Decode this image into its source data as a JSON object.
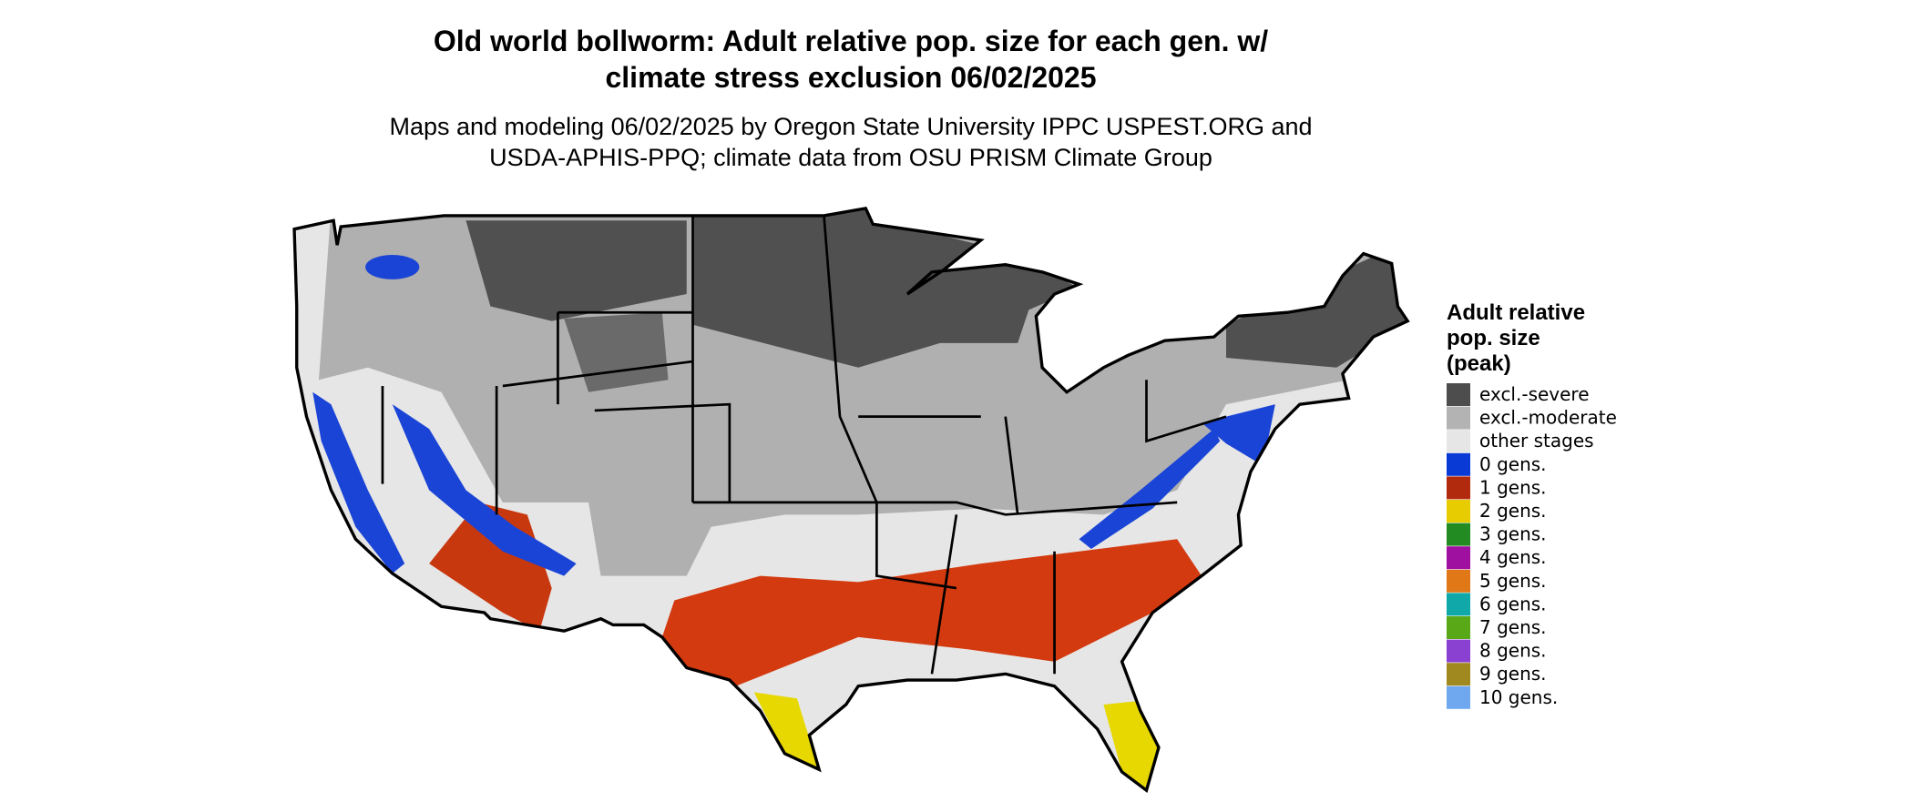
{
  "header": {
    "title_lines": [
      "Old world bollworm: Adult relative pop. size for each gen. w/",
      "climate stress exclusion 06/02/2025"
    ],
    "subtitle_lines": [
      "Maps and modeling 06/02/2025 by Oregon State University IPPC USPEST.ORG and",
      "USDA-APHIS-PPQ; climate data from OSU PRISM Climate Group"
    ]
  },
  "legend": {
    "title_lines": [
      "Adult relative",
      "pop. size",
      "(peak)"
    ],
    "items": [
      {
        "label": "excl.-severe",
        "color": "#4d4d4d"
      },
      {
        "label": "excl.-moderate",
        "color": "#b3b3b3"
      },
      {
        "label": "other stages",
        "color": "#e6e6e6"
      },
      {
        "label": "0 gens.",
        "color": "#0a3ad6"
      },
      {
        "label": "1 gens.",
        "color": "#b22a0e"
      },
      {
        "label": "2 gens.",
        "color": "#e6cc00"
      },
      {
        "label": "3 gens.",
        "color": "#228b22"
      },
      {
        "label": "4 gens.",
        "color": "#a010a0"
      },
      {
        "label": "5 gens.",
        "color": "#e07818"
      },
      {
        "label": "6 gens.",
        "color": "#10a8a8"
      },
      {
        "label": "7 gens.",
        "color": "#58a818"
      },
      {
        "label": "8 gens.",
        "color": "#8a40d0"
      },
      {
        "label": "9 gens.",
        "color": "#a08a20"
      },
      {
        "label": "10 gens.",
        "color": "#70a8f0"
      }
    ]
  }
}
